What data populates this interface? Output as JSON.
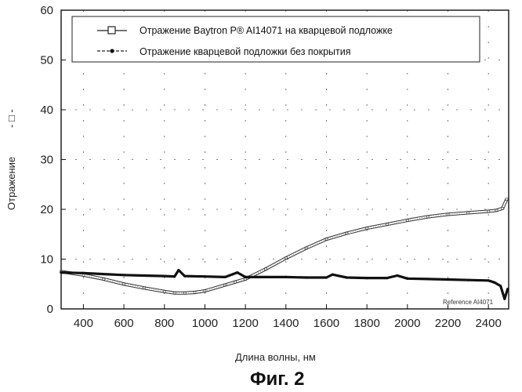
{
  "chart_data": {
    "type": "line",
    "title": "",
    "xlabel": "Длина волны, нм",
    "ylabel": "Отражение",
    "ylabel_marker": "- □ -",
    "xlim": [
      290,
      2500
    ],
    "ylim": [
      0,
      60
    ],
    "x_ticks": [
      "400",
      "600",
      "800",
      "1000",
      "1200",
      "1400",
      "1600",
      "1800",
      "2000",
      "2200",
      "2400"
    ],
    "y_ticks": [
      "0",
      "10",
      "20",
      "30",
      "40",
      "50",
      "60"
    ],
    "grid": true,
    "legend_position": "top",
    "series": [
      {
        "name": "Отражение Baytron P® AI14071 на кварцевой подложке",
        "marker": "open-square",
        "x": [
          290,
          400,
          500,
          600,
          700,
          800,
          850,
          900,
          950,
          1000,
          1100,
          1150,
          1200,
          1300,
          1400,
          1500,
          1600,
          1700,
          1800,
          1900,
          2000,
          2100,
          2200,
          2300,
          2400,
          2440,
          2470,
          2490
        ],
        "y": [
          7.5,
          6.8,
          6.0,
          5.0,
          4.2,
          3.5,
          3.2,
          3.2,
          3.3,
          3.6,
          4.8,
          5.4,
          6.0,
          8.0,
          10.2,
          12.2,
          14.0,
          15.2,
          16.2,
          17.0,
          17.8,
          18.5,
          19.0,
          19.3,
          19.6,
          19.8,
          20.2,
          22.0
        ]
      },
      {
        "name": "Отражение кварцевой подложки без покрытия",
        "marker": "filled-dot",
        "x": [
          290,
          400,
          500,
          600,
          700,
          800,
          850,
          870,
          900,
          1000,
          1100,
          1160,
          1200,
          1300,
          1400,
          1500,
          1600,
          1630,
          1700,
          1800,
          1900,
          1950,
          2000,
          2100,
          2200,
          2300,
          2400,
          2430,
          2460,
          2480,
          2495
        ],
        "y": [
          7.3,
          7.2,
          7.0,
          6.8,
          6.7,
          6.6,
          6.5,
          7.8,
          6.6,
          6.5,
          6.4,
          7.3,
          6.4,
          6.4,
          6.4,
          6.3,
          6.3,
          6.9,
          6.3,
          6.2,
          6.2,
          6.7,
          6.1,
          6.0,
          5.9,
          5.8,
          5.7,
          5.3,
          4.6,
          2.0,
          4.0
        ]
      }
    ],
    "annotations": [
      "Reference AI4071"
    ]
  },
  "caption": "Фиг. 2"
}
